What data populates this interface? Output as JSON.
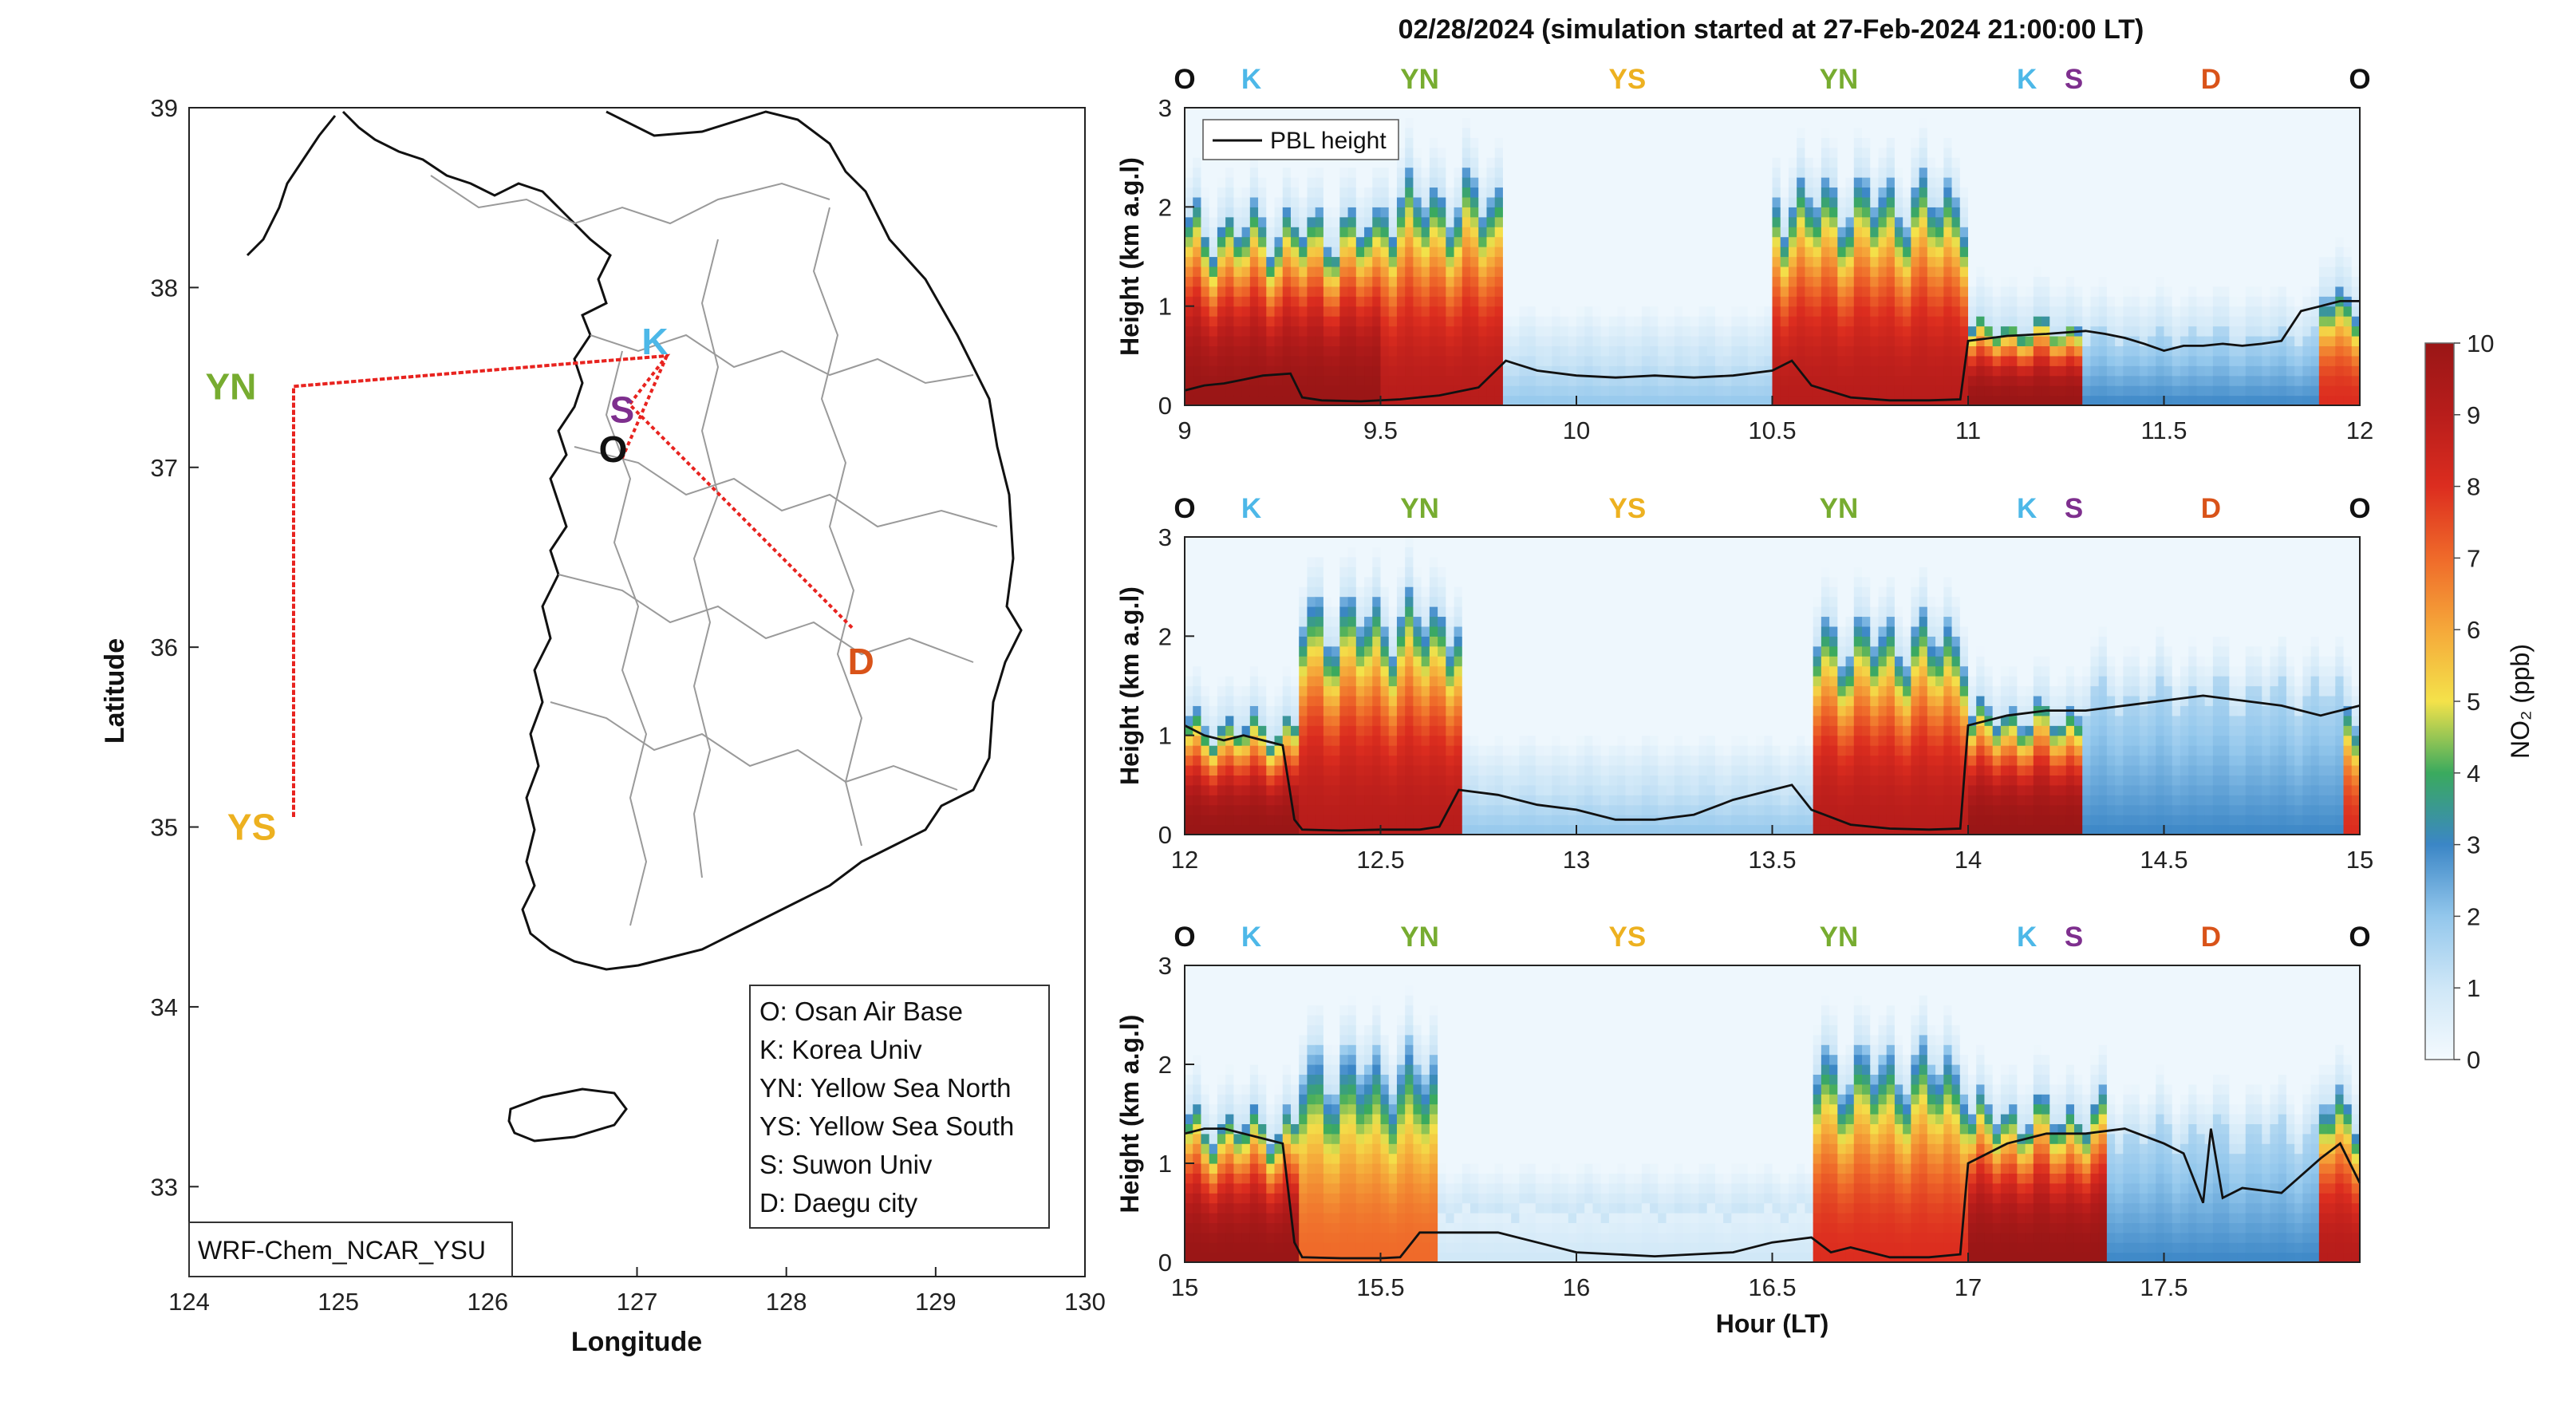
{
  "title": "02/28/2024 (simulation started at 27-Feb-2024 21:00:00 LT)",
  "colors": {
    "O": "#111111",
    "K": "#4db8e8",
    "YN": "#77ac30",
    "YS": "#edb120",
    "S": "#7e2f8e",
    "D": "#d95319",
    "track": "#e8231f"
  },
  "map": {
    "xlabel": "Longitude",
    "ylabel": "Latitude",
    "xticks": [
      "124",
      "125",
      "126",
      "127",
      "128",
      "129",
      "130"
    ],
    "yticks": [
      "33",
      "34",
      "35",
      "36",
      "37",
      "38",
      "39"
    ],
    "xlim": [
      124,
      130
    ],
    "ylim": [
      32.5,
      39
    ],
    "model_label": "WRF-Chem_NCAR_YSU",
    "sites": [
      {
        "code": "K",
        "lon": 127.12,
        "lat": 37.7,
        "color": "#4db8e8"
      },
      {
        "code": "S",
        "lon": 126.9,
        "lat": 37.32,
        "color": "#7e2f8e"
      },
      {
        "code": "O",
        "lon": 126.84,
        "lat": 37.1,
        "color": "#111111"
      },
      {
        "code": "YN",
        "lon": 124.28,
        "lat": 37.45,
        "color": "#77ac30"
      },
      {
        "code": "YS",
        "lon": 124.42,
        "lat": 35.0,
        "color": "#edb120"
      },
      {
        "code": "D",
        "lon": 128.5,
        "lat": 35.92,
        "color": "#d95319"
      }
    ],
    "track": [
      [
        126.9,
        37.05
      ],
      [
        127.2,
        37.62
      ],
      [
        126.6,
        37.58
      ],
      [
        124.7,
        37.45
      ],
      [
        124.7,
        35.05
      ],
      [
        124.7,
        37.45
      ],
      [
        126.6,
        37.58
      ],
      [
        127.2,
        37.62
      ],
      [
        126.95,
        37.35
      ],
      [
        128.45,
        36.1
      ]
    ],
    "legend": [
      "O: Osan Air Base",
      "K: Korea Univ",
      "YN: Yellow Sea North",
      "YS: Yellow Sea South",
      "S: Suwon Univ",
      "D: Daegu city"
    ]
  },
  "panels_common": {
    "ylabel": "Height (km a.g.l)",
    "yticks": [
      "0",
      "1",
      "2",
      "3"
    ],
    "ylim": [
      0,
      3
    ],
    "pbl_legend": "PBL height",
    "xlabel": "Hour (LT)",
    "top_labels": [
      {
        "code": "O",
        "color": "#111111"
      },
      {
        "code": "K",
        "color": "#4db8e8"
      },
      {
        "code": "YN",
        "color": "#77ac30"
      },
      {
        "code": "YS",
        "color": "#edb120"
      },
      {
        "code": "YN",
        "color": "#77ac30"
      },
      {
        "code": "K",
        "color": "#4db8e8"
      },
      {
        "code": "S",
        "color": "#7e2f8e"
      },
      {
        "code": "D",
        "color": "#d95319"
      },
      {
        "code": "O",
        "color": "#111111"
      }
    ]
  },
  "colorbar": {
    "label": "NO₂ (ppb)",
    "ticks": [
      "0",
      "1",
      "2",
      "3",
      "4",
      "5",
      "6",
      "7",
      "8",
      "9",
      "10"
    ],
    "range": [
      0,
      10
    ]
  },
  "chart_data": [
    {
      "type": "heatmap",
      "variable": "NO2 (ppb)",
      "xlim": [
        9,
        12
      ],
      "xticks": [
        "9",
        "9.5",
        "10",
        "10.5",
        "11",
        "11.5",
        "12"
      ],
      "top_label_hours": [
        9.0,
        9.17,
        9.6,
        10.13,
        10.67,
        11.15,
        11.27,
        11.62,
        12.0
      ],
      "pbl_height": {
        "x": [
          9.0,
          9.05,
          9.1,
          9.15,
          9.2,
          9.27,
          9.3,
          9.35,
          9.45,
          9.55,
          9.65,
          9.75,
          9.82,
          9.9,
          10.0,
          10.1,
          10.2,
          10.3,
          10.4,
          10.5,
          10.55,
          10.6,
          10.7,
          10.8,
          10.9,
          10.98,
          11.0,
          11.1,
          11.2,
          11.3,
          11.35,
          11.4,
          11.45,
          11.5,
          11.55,
          11.6,
          11.65,
          11.7,
          11.75,
          11.8,
          11.85,
          11.9,
          11.95,
          12.0
        ],
        "y": [
          0.15,
          0.2,
          0.22,
          0.26,
          0.3,
          0.32,
          0.08,
          0.05,
          0.04,
          0.06,
          0.1,
          0.18,
          0.45,
          0.35,
          0.3,
          0.28,
          0.3,
          0.28,
          0.3,
          0.35,
          0.45,
          0.2,
          0.08,
          0.05,
          0.05,
          0.06,
          0.65,
          0.7,
          0.72,
          0.75,
          0.72,
          0.68,
          0.62,
          0.55,
          0.6,
          0.6,
          0.62,
          0.6,
          0.62,
          0.65,
          0.95,
          1.0,
          1.05,
          1.05
        ]
      },
      "no2_zones": [
        {
          "x": [
            9.0,
            9.5
          ],
          "peak": 10,
          "top_km": 1.8
        },
        {
          "x": [
            9.5,
            9.82
          ],
          "peak": 9,
          "top_km": 2.1
        },
        {
          "x": [
            9.82,
            10.5
          ],
          "peak": 2,
          "top_km": 0.5
        },
        {
          "x": [
            10.5,
            11.0
          ],
          "peak": 9,
          "top_km": 2.1
        },
        {
          "x": [
            11.0,
            11.3
          ],
          "peak": 10,
          "top_km": 0.8
        },
        {
          "x": [
            11.3,
            11.9
          ],
          "peak": 3,
          "top_km": 0.7
        },
        {
          "x": [
            11.9,
            12.0
          ],
          "peak": 8,
          "top_km": 1.1
        }
      ]
    },
    {
      "type": "heatmap",
      "variable": "NO2 (ppb)",
      "xlim": [
        12,
        15
      ],
      "xticks": [
        "12",
        "12.5",
        "13",
        "13.5",
        "14",
        "14.5",
        "15"
      ],
      "top_label_hours": [
        12.0,
        12.17,
        12.6,
        13.13,
        13.67,
        14.15,
        14.27,
        14.62,
        15.0
      ],
      "pbl_height": {
        "x": [
          12.0,
          12.05,
          12.1,
          12.15,
          12.2,
          12.25,
          12.28,
          12.3,
          12.4,
          12.5,
          12.6,
          12.65,
          12.7,
          12.8,
          12.9,
          13.0,
          13.1,
          13.2,
          13.3,
          13.4,
          13.5,
          13.55,
          13.6,
          13.7,
          13.8,
          13.9,
          13.98,
          14.0,
          14.1,
          14.2,
          14.3,
          14.4,
          14.5,
          14.6,
          14.7,
          14.8,
          14.9,
          14.95,
          15.0
        ],
        "y": [
          1.1,
          1.0,
          0.95,
          1.0,
          0.95,
          0.9,
          0.15,
          0.05,
          0.04,
          0.05,
          0.05,
          0.08,
          0.45,
          0.4,
          0.3,
          0.25,
          0.15,
          0.15,
          0.2,
          0.35,
          0.45,
          0.5,
          0.25,
          0.1,
          0.06,
          0.05,
          0.06,
          1.1,
          1.2,
          1.25,
          1.25,
          1.3,
          1.35,
          1.4,
          1.35,
          1.3,
          1.2,
          1.25,
          1.3
        ]
      },
      "no2_zones": [
        {
          "x": [
            12.0,
            12.3
          ],
          "peak": 10,
          "top_km": 1.1
        },
        {
          "x": [
            12.3,
            12.7
          ],
          "peak": 9,
          "top_km": 2.2
        },
        {
          "x": [
            12.7,
            13.6
          ],
          "peak": 2,
          "top_km": 0.5
        },
        {
          "x": [
            13.6,
            14.0
          ],
          "peak": 9,
          "top_km": 2.0
        },
        {
          "x": [
            14.0,
            14.3
          ],
          "peak": 10,
          "top_km": 1.2
        },
        {
          "x": [
            14.3,
            14.95
          ],
          "peak": 3,
          "top_km": 1.4
        },
        {
          "x": [
            14.95,
            15.0
          ],
          "peak": 8,
          "top_km": 1.3
        }
      ]
    },
    {
      "type": "heatmap",
      "variable": "NO2 (ppb)",
      "xlim": [
        15,
        18
      ],
      "xticks": [
        "15",
        "15.5",
        "16",
        "16.5",
        "17",
        "17.5"
      ],
      "top_label_hours": [
        15.0,
        15.17,
        15.6,
        16.13,
        16.67,
        17.15,
        17.27,
        17.62,
        18.0
      ],
      "pbl_height": {
        "x": [
          15.0,
          15.05,
          15.1,
          15.15,
          15.2,
          15.25,
          15.28,
          15.3,
          15.4,
          15.5,
          15.55,
          15.6,
          15.7,
          15.8,
          15.9,
          16.0,
          16.1,
          16.2,
          16.3,
          16.4,
          16.5,
          16.6,
          16.65,
          16.7,
          16.8,
          16.9,
          16.98,
          17.0,
          17.1,
          17.2,
          17.3,
          17.4,
          17.5,
          17.55,
          17.6,
          17.62,
          17.65,
          17.7,
          17.8,
          17.9,
          17.95,
          18.0
        ],
        "y": [
          1.3,
          1.35,
          1.35,
          1.3,
          1.25,
          1.2,
          0.2,
          0.05,
          0.04,
          0.04,
          0.05,
          0.3,
          0.3,
          0.3,
          0.2,
          0.1,
          0.08,
          0.06,
          0.08,
          0.1,
          0.2,
          0.25,
          0.1,
          0.15,
          0.05,
          0.05,
          0.08,
          1.0,
          1.2,
          1.3,
          1.3,
          1.35,
          1.2,
          1.1,
          0.6,
          1.35,
          0.65,
          0.75,
          0.7,
          1.05,
          1.2,
          0.8
        ]
      },
      "no2_zones": [
        {
          "x": [
            15.0,
            15.3
          ],
          "peak": 10,
          "top_km": 1.4
        },
        {
          "x": [
            15.3,
            15.65
          ],
          "peak": 7,
          "top_km": 2.0
        },
        {
          "x": [
            15.65,
            16.6
          ],
          "peak": 1,
          "top_km": 0.5
        },
        {
          "x": [
            16.6,
            17.0
          ],
          "peak": 8,
          "top_km": 2.0
        },
        {
          "x": [
            17.0,
            17.35
          ],
          "peak": 10,
          "top_km": 1.5
        },
        {
          "x": [
            17.35,
            17.9
          ],
          "peak": 3,
          "top_km": 1.3
        },
        {
          "x": [
            17.9,
            18.0
          ],
          "peak": 9,
          "top_km": 1.6
        }
      ]
    }
  ]
}
